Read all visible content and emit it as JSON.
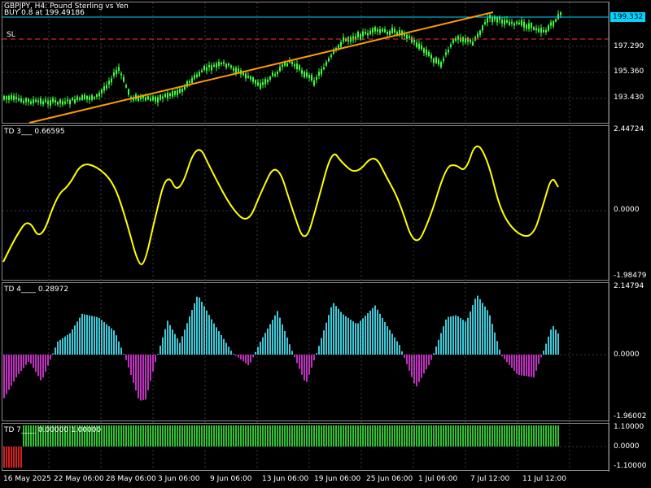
{
  "chart": {
    "symbol_title": "GBPJPY, H4: Pound Sterling vs Yen",
    "order_label": "BUY 0.8 at 199.49186",
    "sl_label": "SL",
    "current_price": "199.332",
    "colors": {
      "background": "#000000",
      "candle": "#3cff3c",
      "trendline": "#ff9900",
      "bid_line": "#00d4ff",
      "sl_line": "#ff3333",
      "td3_line": "#ffff00",
      "td4_positive": "#40c8d8",
      "td4_negative": "#c030c0",
      "td7_positive": "#30c030",
      "td7_negative": "#d02020",
      "grid": "#3a3a3a"
    },
    "price_axis": [
      "197.290",
      "195.360",
      "193.430"
    ],
    "time_axis": [
      "16 May 2025",
      "22 May 06:00",
      "28 May 06:00",
      "3 Jun 06:00",
      "9 Jun 06:00",
      "13 Jun 06:00",
      "19 Jun 06:00",
      "25 Jun 06:00",
      "1 Jul 06:00",
      "7 Jul 12:00",
      "11 Jul 12:00"
    ]
  },
  "td3": {
    "title": "TD 3___ 0.66595",
    "axis": [
      "2.44724",
      "0.0000",
      "-1.98479"
    ]
  },
  "td4": {
    "title": "TD 4____ 0.28972",
    "axis": [
      "2.14794",
      "0.0000",
      "-1.96002"
    ]
  },
  "td7": {
    "title": "TD 7____ 0.00000 1.00000",
    "axis": [
      "1.10000",
      "0.0000",
      "-1.10000"
    ]
  }
}
